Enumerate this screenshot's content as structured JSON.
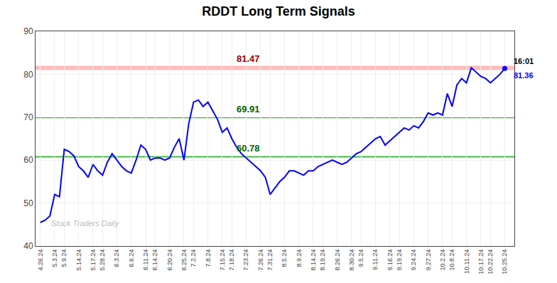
{
  "chart_data": {
    "type": "line",
    "title": "RDDT Long Term Signals",
    "categories": [
      "4.26.24",
      null,
      null,
      "5.3.24",
      null,
      "5.9.24",
      null,
      null,
      "5.14.24",
      null,
      null,
      "5.17.24",
      null,
      "5.28.24",
      null,
      null,
      "6.3.24",
      null,
      null,
      "6.6.24",
      null,
      null,
      "6.11.24",
      null,
      "6.14.24",
      null,
      null,
      "6.20.24",
      null,
      null,
      "6.25.24",
      null,
      "7.2.24",
      null,
      null,
      "7.8.24",
      null,
      null,
      "7.15.24",
      null,
      "7.18.24",
      null,
      null,
      "7.23.24",
      null,
      null,
      "7.26.24",
      null,
      "7.31.24",
      null,
      null,
      "8.5.24",
      null,
      null,
      "8.9.24",
      null,
      null,
      "8.14.24",
      null,
      "8.19.24",
      null,
      null,
      "8.26.24",
      null,
      null,
      "8.30.24",
      null,
      "9.5.24",
      null,
      null,
      "9.11.24",
      null,
      null,
      "9.16.24",
      null,
      "9.19.24",
      null,
      null,
      "9.24.24",
      null,
      null,
      "9.27.24",
      null,
      null,
      "10.2.24",
      null,
      "10.8.24",
      null,
      null,
      "10.11.24",
      null,
      null,
      "10.17.24",
      null,
      "10.22.24",
      null,
      null,
      "10.25.24"
    ],
    "values": [
      45.5,
      46.0,
      47.0,
      52.0,
      51.5,
      62.5,
      62.0,
      61.0,
      58.5,
      57.5,
      56.0,
      59.0,
      57.5,
      56.5,
      59.5,
      61.5,
      60.0,
      58.5,
      57.5,
      57.0,
      60.0,
      63.5,
      62.5,
      60.0,
      60.5,
      60.5,
      60.0,
      60.5,
      63.0,
      65.0,
      60.0,
      68.5,
      73.5,
      74.0,
      72.5,
      73.5,
      71.5,
      69.5,
      66.5,
      67.5,
      65.0,
      63.0,
      61.5,
      60.5,
      59.5,
      58.5,
      57.5,
      56.0,
      52.0,
      53.5,
      55.0,
      56.0,
      57.5,
      57.5,
      57.0,
      56.5,
      57.5,
      57.5,
      58.5,
      59.0,
      59.5,
      60.0,
      59.5,
      59.0,
      59.5,
      60.5,
      61.5,
      62.0,
      63.0,
      64.0,
      65.0,
      65.5,
      63.5,
      64.5,
      65.5,
      66.5,
      67.5,
      67.0,
      68.0,
      67.5,
      69.0,
      71.0,
      70.5,
      71.0,
      70.5,
      75.5,
      72.5,
      77.5,
      79.0,
      78.0,
      81.5,
      80.5,
      79.5,
      79.0,
      78.0,
      79.0,
      80.0,
      81.36
    ],
    "color": "blue",
    "ylim": [
      40,
      90
    ],
    "yticks": [
      40,
      50,
      60,
      70,
      80,
      90
    ],
    "grid": true,
    "hlines": [
      {
        "value": 81.47,
        "label": "81.47",
        "color": "#ffbbbb",
        "label_color": "#990000"
      },
      {
        "value": 69.91,
        "label": "69.91",
        "color": "#44bb44",
        "label_color": "#006600"
      },
      {
        "value": 60.78,
        "label": "60.78",
        "color": "#44bb44",
        "label_color": "#006600"
      }
    ],
    "last_time": "16:01",
    "last_price": "81.36",
    "watermark": {
      "text": "Stock Traders Daily",
      "color": "#bbbbbb"
    }
  }
}
